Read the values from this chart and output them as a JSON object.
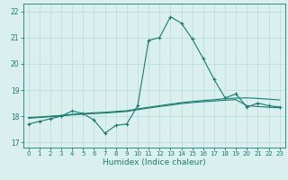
{
  "xlabel": "Humidex (Indice chaleur)",
  "x_values": [
    0,
    1,
    2,
    3,
    4,
    5,
    6,
    7,
    8,
    9,
    10,
    11,
    12,
    13,
    14,
    15,
    16,
    17,
    18,
    19,
    20,
    21,
    22,
    23
  ],
  "line1_y": [
    17.7,
    17.8,
    17.9,
    18.0,
    18.2,
    18.1,
    17.85,
    17.35,
    17.65,
    17.7,
    18.4,
    20.9,
    21.0,
    21.8,
    21.55,
    20.95,
    20.2,
    19.4,
    18.7,
    18.85,
    18.35,
    18.5,
    18.4,
    18.35
  ],
  "line2_y": [
    17.95,
    17.97,
    18.0,
    18.03,
    18.07,
    18.1,
    18.13,
    18.15,
    18.18,
    18.21,
    18.28,
    18.34,
    18.4,
    18.46,
    18.52,
    18.56,
    18.6,
    18.63,
    18.67,
    18.69,
    18.7,
    18.68,
    18.65,
    18.62
  ],
  "line3_y": [
    17.92,
    17.95,
    17.98,
    18.01,
    18.05,
    18.08,
    18.1,
    18.12,
    18.15,
    18.18,
    18.25,
    18.31,
    18.37,
    18.42,
    18.48,
    18.52,
    18.55,
    18.58,
    18.61,
    18.63,
    18.4,
    18.37,
    18.34,
    18.32
  ],
  "line_color": "#1a7a6e",
  "bg_color": "#d9f0ee",
  "grid_color": "#b8dbd8",
  "ylim": [
    16.8,
    22.3
  ],
  "yticks": [
    17,
    18,
    19,
    20,
    21,
    22
  ],
  "xticks": [
    0,
    1,
    2,
    3,
    4,
    5,
    6,
    7,
    8,
    9,
    10,
    11,
    12,
    13,
    14,
    15,
    16,
    17,
    18,
    19,
    20,
    21,
    22,
    23
  ]
}
